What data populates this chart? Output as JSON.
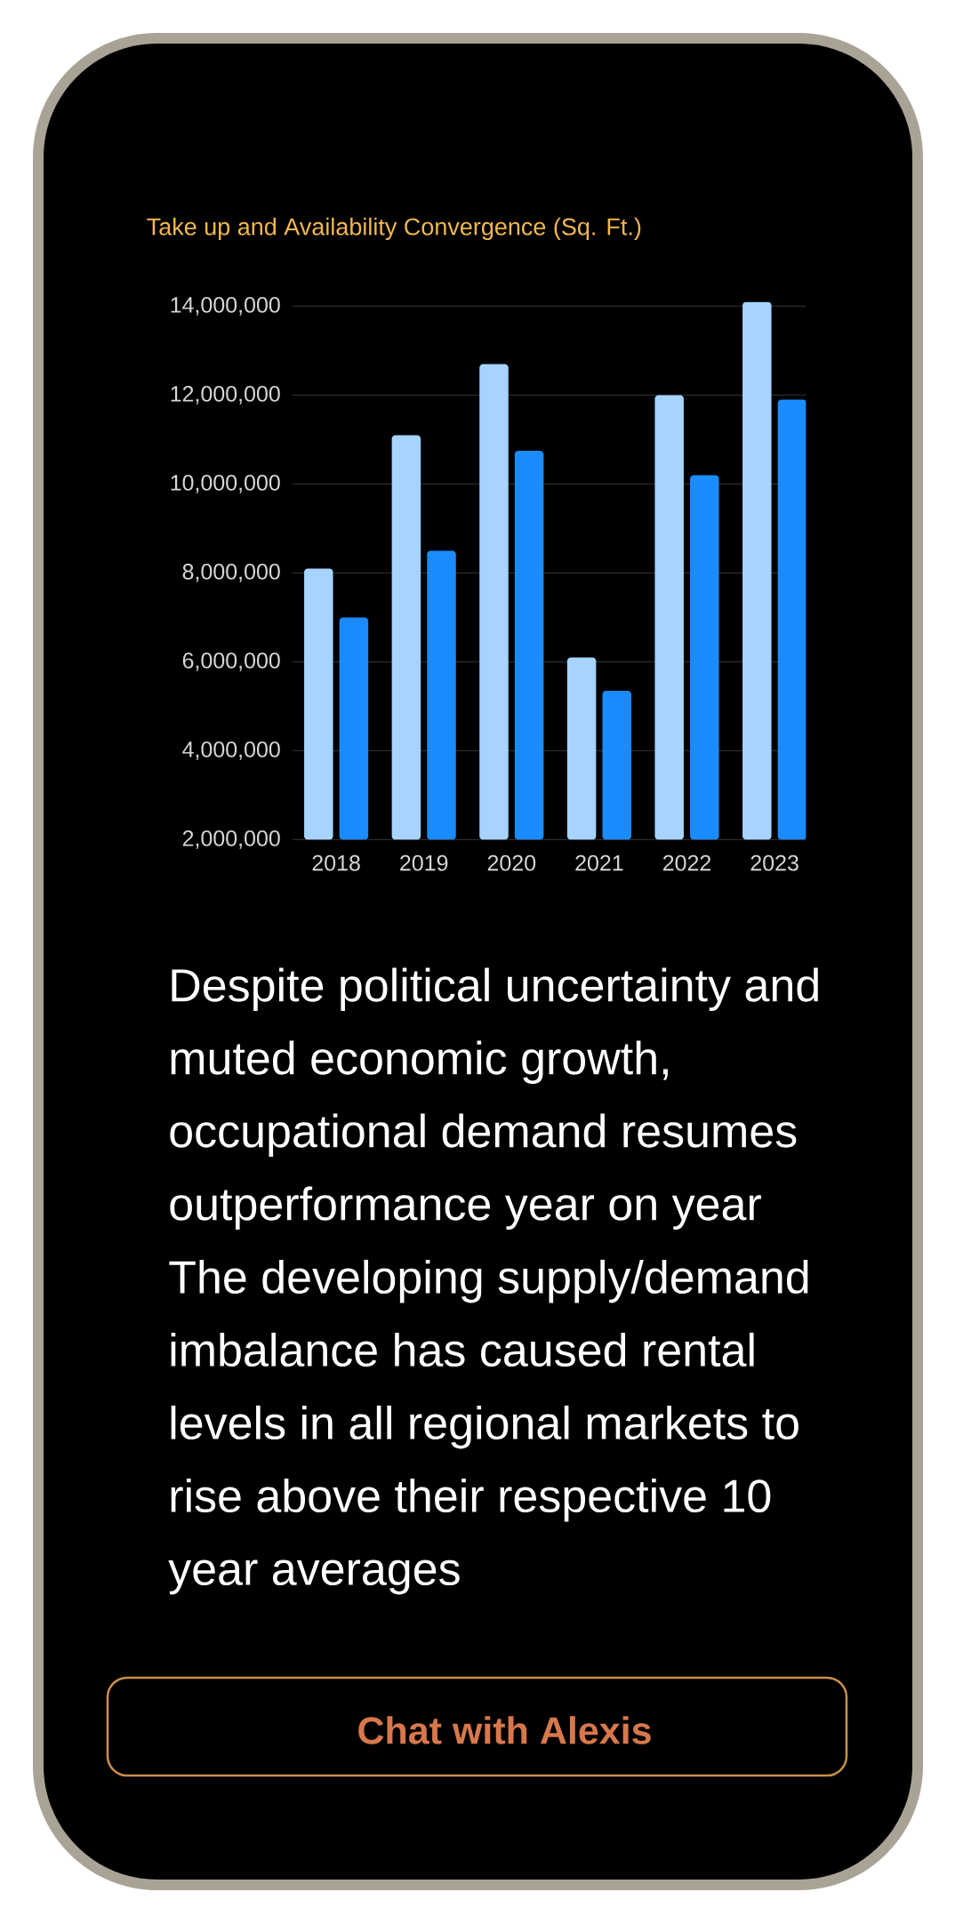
{
  "chart_data": {
    "type": "bar",
    "title": "Take up and Availability Convergence (Sq. Ft.)",
    "categories": [
      "2018",
      "2019",
      "2020",
      "2021",
      "2022",
      "2023"
    ],
    "series": [
      {
        "color": "#a6d4ff",
        "values": [
          8100000,
          11100000,
          12700000,
          6100000,
          12000000,
          14100000
        ]
      },
      {
        "color": "#1a8cff",
        "values": [
          7000000,
          8500000,
          10750000,
          5350000,
          10200000,
          11900000
        ]
      }
    ],
    "ylim": [
      2000000,
      14100000
    ],
    "yticks": [
      {
        "value": 2000000,
        "label": "2,000,000"
      },
      {
        "value": 4000000,
        "label": "4,000,000"
      },
      {
        "value": 6000000,
        "label": "6,000,000"
      },
      {
        "value": 8000000,
        "label": "8,000,000"
      },
      {
        "value": 10000000,
        "label": "10,000,000"
      },
      {
        "value": 12000000,
        "label": "12,000,000"
      },
      {
        "value": 14000000,
        "label": "14,000,000"
      }
    ],
    "grid": "y",
    "annotations": [
      "Despite political uncertainty and muted economic growth, occupational demand resumes outperformance year on year",
      "The developing supply/demand imbalance has caused rental levels in all regional markets to rise above their respective 10 year averages",
      "Chat with Alexis"
    ]
  }
}
